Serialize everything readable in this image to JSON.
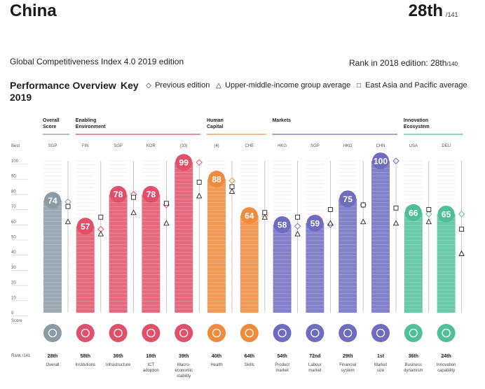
{
  "header": {
    "country": "China",
    "rank": "28th",
    "rank_of": "/141",
    "edition": "Global Competitiveness Index 4.0 2019 edition",
    "rank_2018_label": "Rank in 2018 edition: 28th",
    "rank_2018_of": "/140",
    "performance_title": "Performance Overview 2019",
    "key_label": "Key"
  },
  "legend": [
    {
      "symbol": "diamond",
      "label": "Previous edition"
    },
    {
      "symbol": "triangle",
      "label": "Upper-middle-income group average"
    },
    {
      "symbol": "square",
      "label": "East Asia and Pacific average"
    }
  ],
  "groups": [
    {
      "label": "Overall Score",
      "color": "#8a9ba5"
    },
    {
      "label": "Enabling Environment",
      "color": "#e0506a"
    },
    {
      "label": "Human Capital",
      "color": "#f08a3c"
    },
    {
      "label": "Markets",
      "color": "#6f6bbf"
    },
    {
      "label": "Innovation Ecosystem",
      "color": "#4fbf9a"
    }
  ],
  "axis": {
    "best_label": "Best",
    "score_label": "Score",
    "ticks": [
      "100",
      "90",
      "80",
      "70",
      "60",
      "50",
      "40",
      "30",
      "20",
      "10",
      "0"
    ],
    "rank_label": "Rank /141"
  },
  "chart_data": {
    "type": "bar",
    "categories": [
      "Overall",
      "Institutions",
      "Infrastructure",
      "ICT adoption",
      "Macro-economic stability",
      "Health",
      "Skills",
      "Product market",
      "Labour market",
      "Financial system",
      "Market size",
      "Business dynamism",
      "Innovation capability"
    ],
    "values": [
      74,
      57,
      78,
      78,
      99,
      88,
      64,
      58,
      59,
      75,
      100,
      66,
      65
    ],
    "ylim": [
      0,
      100
    ],
    "best_performer": [
      "SGP",
      "FIN",
      "SGP",
      "KOR",
      "(33)",
      "(4)",
      "CHE",
      "HKG",
      "SGP",
      "HKG",
      "CHN",
      "USA",
      "DEU"
    ],
    "ranks": [
      "28th",
      "58th",
      "36th",
      "18th",
      "39th",
      "40th",
      "64th",
      "54th",
      "72nd",
      "29th",
      "1st",
      "36th",
      "24th"
    ],
    "group_index": [
      0,
      1,
      1,
      1,
      1,
      2,
      2,
      3,
      3,
      3,
      3,
      4,
      4
    ],
    "previous_edition": [
      73,
      55,
      78,
      71,
      99,
      87,
      64,
      57,
      58,
      71,
      100,
      65,
      65
    ],
    "group_average": [
      60,
      52,
      66,
      59,
      77,
      80,
      63,
      52,
      59,
      60,
      59,
      60,
      39
    ],
    "region_average": [
      70,
      63,
      76,
      72,
      86,
      83,
      66,
      63,
      68,
      71,
      69,
      68,
      55
    ],
    "icons": [
      "target-icon",
      "institutions-icon",
      "infrastructure-icon",
      "ict-chip-icon",
      "percent-icon",
      "heart-icon",
      "skills-icon",
      "tag-icon",
      "people-icon",
      "card-icon",
      "arrow-out-icon",
      "door-icon",
      "bulb-icon"
    ]
  }
}
